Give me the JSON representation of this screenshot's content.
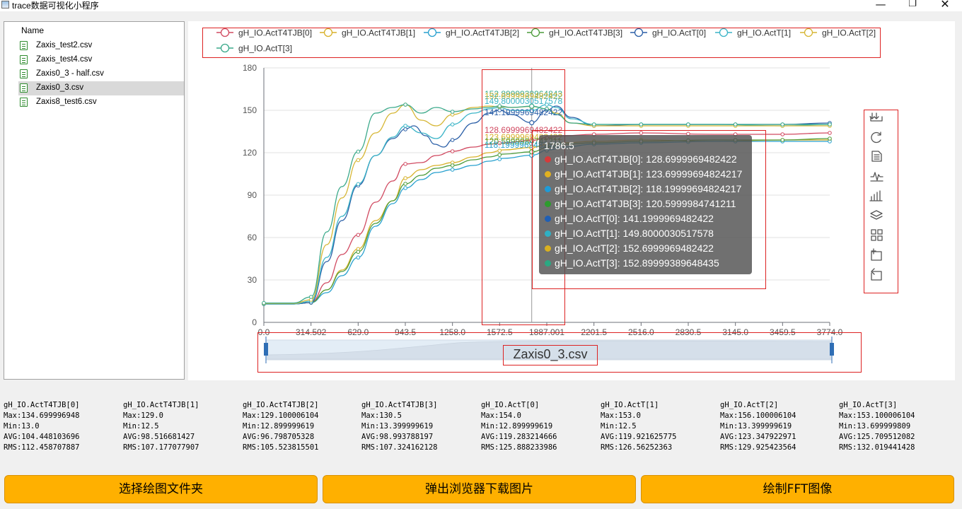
{
  "window": {
    "title": "trace数据可视化小程序",
    "minimize_glyph": "—",
    "maximize_glyph": "❐",
    "close_glyph": "✕"
  },
  "file_panel": {
    "header": "Name",
    "files": [
      {
        "name": "Zaxis_test2.csv",
        "selected": false
      },
      {
        "name": "Zaxis_test4.csv",
        "selected": false
      },
      {
        "name": "Zaxis0_3 - half.csv",
        "selected": false
      },
      {
        "name": "Zaxis0_3.csv",
        "selected": true
      },
      {
        "name": "Zaxis8_test6.csv",
        "selected": false
      }
    ]
  },
  "chart_data": {
    "type": "line",
    "ylim": [
      0,
      180
    ],
    "yticks": [
      "0",
      "30",
      "60",
      "90",
      "120",
      "150",
      "180"
    ],
    "xlim": [
      0,
      3774
    ],
    "xticks": [
      "0.0",
      "314.502",
      "629.0",
      "943.5",
      "1258.0",
      "1572.5",
      "1887.001",
      "2201.5",
      "2516.0",
      "2830.5",
      "3145.0",
      "3459.5",
      "3774.0"
    ],
    "grid": true,
    "legend_position": "top",
    "cursor_x": 1786.5,
    "series": [
      {
        "name": "gH_IO.ActT4TJB[0]",
        "color": "#d14a61",
        "points": [
          [
            0,
            13
          ],
          [
            200,
            13
          ],
          [
            315,
            14
          ],
          [
            420,
            28
          ],
          [
            520,
            48
          ],
          [
            630,
            62
          ],
          [
            745,
            85
          ],
          [
            860,
            100
          ],
          [
            940,
            112
          ],
          [
            1050,
            113
          ],
          [
            1150,
            118
          ],
          [
            1258,
            121
          ],
          [
            1400,
            124
          ],
          [
            1500,
            126
          ],
          [
            1600,
            127
          ],
          [
            1786.5,
            128.7
          ],
          [
            1900,
            131
          ],
          [
            2000,
            132
          ],
          [
            2201,
            133
          ],
          [
            2516,
            134
          ],
          [
            3000,
            133
          ],
          [
            3459,
            133
          ],
          [
            3774,
            134
          ]
        ],
        "markers": [
          0,
          315,
          629,
          944,
          1258,
          1572,
          1887,
          2202,
          2516,
          2830,
          3145,
          3459,
          3774
        ]
      },
      {
        "name": "gH_IO.ActT4TJB[1]",
        "color": "#d8b12a",
        "points": [
          [
            0,
            13
          ],
          [
            200,
            13
          ],
          [
            315,
            14
          ],
          [
            420,
            23
          ],
          [
            520,
            37
          ],
          [
            630,
            52
          ],
          [
            745,
            72
          ],
          [
            860,
            86
          ],
          [
            944,
            102
          ],
          [
            1050,
            108
          ],
          [
            1150,
            111
          ],
          [
            1258,
            113
          ],
          [
            1400,
            117
          ],
          [
            1500,
            120
          ],
          [
            1600,
            122
          ],
          [
            1786.5,
            123.7
          ],
          [
            1900,
            126
          ],
          [
            2000,
            127
          ],
          [
            2201,
            128
          ],
          [
            2516,
            129
          ],
          [
            3000,
            128
          ],
          [
            3459,
            129
          ],
          [
            3774,
            129
          ]
        ],
        "markers": [
          0,
          315,
          629,
          944,
          1258,
          1572,
          1887,
          2202,
          2516,
          2830,
          3145,
          3459,
          3774
        ]
      },
      {
        "name": "gH_IO.ActT4TJB[2]",
        "color": "#29a1cf",
        "points": [
          [
            0,
            13
          ],
          [
            200,
            13
          ],
          [
            315,
            14
          ],
          [
            420,
            21
          ],
          [
            520,
            33
          ],
          [
            630,
            46
          ],
          [
            745,
            68
          ],
          [
            860,
            84
          ],
          [
            944,
            95
          ],
          [
            1050,
            101
          ],
          [
            1150,
            106
          ],
          [
            1258,
            108
          ],
          [
            1400,
            111
          ],
          [
            1500,
            114
          ],
          [
            1600,
            116
          ],
          [
            1786.5,
            118.2
          ],
          [
            1900,
            122
          ],
          [
            2000,
            124
          ],
          [
            2201,
            126
          ],
          [
            2516,
            127
          ],
          [
            3000,
            128
          ],
          [
            3459,
            128
          ],
          [
            3774,
            128
          ]
        ],
        "markers": [
          0,
          315,
          629,
          944,
          1258,
          1572,
          1887,
          2202,
          2516,
          2830,
          3145,
          3459,
          3774
        ]
      },
      {
        "name": "gH_IO.ActT4TJB[3]",
        "color": "#4d9c3c",
        "points": [
          [
            0,
            13.4
          ],
          [
            200,
            13.4
          ],
          [
            315,
            14
          ],
          [
            420,
            23
          ],
          [
            520,
            36
          ],
          [
            630,
            50
          ],
          [
            745,
            70
          ],
          [
            860,
            86
          ],
          [
            944,
            98
          ],
          [
            1050,
            104
          ],
          [
            1150,
            109
          ],
          [
            1258,
            111
          ],
          [
            1400,
            115
          ],
          [
            1500,
            117
          ],
          [
            1600,
            119
          ],
          [
            1786.5,
            120.6
          ],
          [
            1900,
            124
          ],
          [
            2000,
            126
          ],
          [
            2201,
            127
          ],
          [
            2516,
            128
          ],
          [
            3000,
            129
          ],
          [
            3459,
            129
          ],
          [
            3774,
            130
          ]
        ],
        "markers": [
          0,
          315,
          629,
          944,
          1258,
          1572,
          1887,
          2202,
          2516,
          2830,
          3145,
          3459,
          3774
        ]
      },
      {
        "name": "gH_IO.ActT[0]",
        "color": "#2b5fa7",
        "points": [
          [
            0,
            13
          ],
          [
            200,
            13
          ],
          [
            315,
            14
          ],
          [
            420,
            43
          ],
          [
            520,
            72
          ],
          [
            630,
            97
          ],
          [
            745,
            118
          ],
          [
            860,
            130
          ],
          [
            950,
            137
          ],
          [
            1000,
            139
          ],
          [
            1080,
            132
          ],
          [
            1140,
            126
          ],
          [
            1200,
            124
          ],
          [
            1258,
            129
          ],
          [
            1400,
            141
          ],
          [
            1500,
            148
          ],
          [
            1572,
            150
          ],
          [
            1650,
            147
          ],
          [
            1786.5,
            141.2
          ],
          [
            1887,
            150
          ],
          [
            1950,
            153
          ],
          [
            2050,
            145
          ],
          [
            2201,
            139
          ],
          [
            2516,
            140
          ],
          [
            3000,
            140
          ],
          [
            3459,
            140
          ],
          [
            3774,
            141
          ]
        ],
        "markers": [
          0,
          315,
          629,
          944,
          1258,
          1572,
          1887,
          2202,
          2516,
          2830,
          3145,
          3459,
          3774
        ]
      },
      {
        "name": "gH_IO.ActT[1]",
        "color": "#3bb4c7",
        "points": [
          [
            0,
            13
          ],
          [
            200,
            13
          ],
          [
            315,
            15
          ],
          [
            420,
            46
          ],
          [
            520,
            75
          ],
          [
            630,
            98
          ],
          [
            745,
            118
          ],
          [
            860,
            131
          ],
          [
            944,
            139
          ],
          [
            1050,
            134
          ],
          [
            1150,
            130
          ],
          [
            1258,
            140
          ],
          [
            1400,
            148
          ],
          [
            1500,
            151
          ],
          [
            1572,
            152
          ],
          [
            1650,
            150
          ],
          [
            1786.5,
            149.8
          ],
          [
            1887,
            154
          ],
          [
            1950,
            152
          ],
          [
            2050,
            144
          ],
          [
            2201,
            140
          ],
          [
            2516,
            140
          ],
          [
            3000,
            140
          ],
          [
            3459,
            139
          ],
          [
            3774,
            140
          ]
        ],
        "markers": [
          0,
          315,
          629,
          944,
          1258,
          1572,
          1887,
          2202,
          2516,
          2830,
          3145,
          3459,
          3774
        ]
      },
      {
        "name": "gH_IO.ActT[2]",
        "color": "#d6b634",
        "points": [
          [
            0,
            13.4
          ],
          [
            200,
            13.4
          ],
          [
            315,
            16
          ],
          [
            420,
            55
          ],
          [
            520,
            88
          ],
          [
            630,
            115
          ],
          [
            745,
            134
          ],
          [
            860,
            148
          ],
          [
            944,
            154
          ],
          [
            1050,
            143
          ],
          [
            1150,
            139
          ],
          [
            1258,
            147
          ],
          [
            1400,
            152
          ],
          [
            1500,
            153
          ],
          [
            1572,
            152.5
          ],
          [
            1650,
            152
          ],
          [
            1786.5,
            152.7
          ],
          [
            1887,
            151
          ],
          [
            1950,
            148
          ],
          [
            2050,
            141
          ],
          [
            2201,
            139
          ],
          [
            2516,
            139
          ],
          [
            3000,
            139
          ],
          [
            3459,
            139
          ],
          [
            3774,
            139
          ]
        ],
        "markers": [
          0,
          315,
          629,
          944,
          1258,
          1572,
          1887,
          2202,
          2516,
          2830,
          3145,
          3459,
          3774
        ]
      },
      {
        "name": "gH_IO.ActT[3]",
        "color": "#3aa98a",
        "points": [
          [
            0,
            13.7
          ],
          [
            200,
            13.7
          ],
          [
            315,
            18
          ],
          [
            420,
            64
          ],
          [
            520,
            96
          ],
          [
            630,
            121
          ],
          [
            745,
            148
          ],
          [
            860,
            152
          ],
          [
            944,
            154
          ],
          [
            1050,
            148
          ],
          [
            1150,
            152
          ],
          [
            1258,
            149
          ],
          [
            1400,
            151
          ],
          [
            1500,
            152
          ],
          [
            1572,
            153
          ],
          [
            1650,
            152
          ],
          [
            1786.5,
            152.9
          ],
          [
            1887,
            151
          ],
          [
            1950,
            147
          ],
          [
            2050,
            141
          ],
          [
            2201,
            140
          ],
          [
            2516,
            140
          ],
          [
            3000,
            140
          ],
          [
            3459,
            140
          ],
          [
            3774,
            140
          ]
        ],
        "markers": [
          0,
          315,
          629,
          944,
          1258,
          1572,
          1887,
          2202,
          2516,
          2830,
          3145,
          3459,
          3774
        ]
      }
    ],
    "value_labels": [
      {
        "text": "152.8999938964843",
        "color": "#3aa98a"
      },
      {
        "text": "152.6999969482422",
        "color": "#d6b634"
      },
      {
        "text": "149.8000030517578",
        "color": "#3bb4c7"
      },
      {
        "text": "141.1999969482422",
        "color": "#2b5fa7"
      },
      {
        "text": "128.6999969482422",
        "color": "#d14a61"
      },
      {
        "text": "123.6999969482422",
        "color": "#d8b12a"
      },
      {
        "text": "120.5999984741211",
        "color": "#4d9c3c"
      },
      {
        "text": "118.1999969482422",
        "color": "#29a1cf"
      }
    ],
    "zoom_label": "Zaxis0_3.csv"
  },
  "tooltip": {
    "title": "1786.5",
    "rows": [
      {
        "label": "gH_IO.ActT4TJB[0]: 128.6999969482422",
        "color": "#d63a3a"
      },
      {
        "label": "gH_IO.ActT4TJB[1]: 123.69999694824217",
        "color": "#e0b020"
      },
      {
        "label": "gH_IO.ActT4TJB[2]: 118.19999694824217",
        "color": "#1e9bd7"
      },
      {
        "label": "gH_IO.ActT4TJB[3]: 120.5999984741211",
        "color": "#2d9c2d"
      },
      {
        "label": "gH_IO.ActT[0]: 141.1999969482422",
        "color": "#1f5fb5"
      },
      {
        "label": "gH_IO.ActT[1]: 149.8000030517578",
        "color": "#2fb0c4"
      },
      {
        "label": "gH_IO.ActT[2]: 152.6999969482422",
        "color": "#d8b020"
      },
      {
        "label": "gH_IO.ActT[3]: 152.89999389648435",
        "color": "#2aa882"
      }
    ]
  },
  "toolbox": {
    "icons": [
      "download-icon",
      "refresh-icon",
      "data-view-icon",
      "line-chart-icon",
      "bar-chart-icon",
      "stack-icon",
      "tiled-icon",
      "zoom-select-icon",
      "zoom-back-icon"
    ]
  },
  "stats": [
    {
      "name": "gH_IO.ActT4TJB[0]",
      "max": "Max:134.699996948",
      "min": "Min:13.0",
      "avg": "AVG:104.448103696",
      "rms": "RMS:112.458707887"
    },
    {
      "name": "gH_IO.ActT4TJB[1]",
      "max": "Max:129.0",
      "min": "Min:12.5",
      "avg": "AVG:98.516681427",
      "rms": "RMS:107.177077907"
    },
    {
      "name": "gH_IO.ActT4TJB[2]",
      "max": "Max:129.100006104",
      "min": "Min:12.899999619",
      "avg": "AVG:96.798705328",
      "rms": "RMS:105.523815501"
    },
    {
      "name": "gH_IO.ActT4TJB[3]",
      "max": "Max:130.5",
      "min": "Min:13.399999619",
      "avg": "AVG:98.993788197",
      "rms": "RMS:107.324162128"
    },
    {
      "name": "gH_IO.ActT[0]",
      "max": "Max:154.0",
      "min": "Min:12.899999619",
      "avg": "AVG:119.283214666",
      "rms": "RMS:125.888233986"
    },
    {
      "name": "gH_IO.ActT[1]",
      "max": "Max:153.0",
      "min": "Min:12.5",
      "avg": "AVG:119.921625775",
      "rms": "RMS:126.56252363"
    },
    {
      "name": "gH_IO.ActT[2]",
      "max": "Max:156.100006104",
      "min": "Min:13.399999619",
      "avg": "AVG:123.347922971",
      "rms": "RMS:129.925423564"
    },
    {
      "name": "gH_IO.ActT[3]",
      "max": "Max:153.100006104",
      "min": "Min:13.699999809",
      "avg": "AVG:125.709512082",
      "rms": "RMS:132.019441428"
    }
  ],
  "buttons": {
    "select_folder": "选择绘图文件夹",
    "download_image": "弹出浏览器下载图片",
    "draw_fft": "绘制FFT图像"
  }
}
